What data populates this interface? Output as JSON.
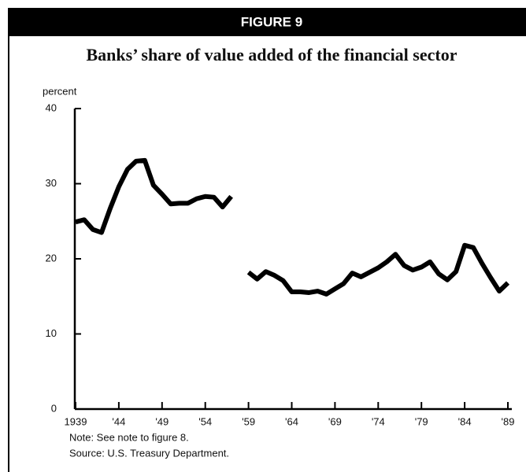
{
  "chart_data": {
    "type": "line",
    "figure_label": "FIGURE 9",
    "title": "Banks’ share of value added of the financial sector",
    "y_label": "percent",
    "x": [
      1939,
      1940,
      1941,
      1942,
      1943,
      1944,
      1945,
      1946,
      1947,
      1948,
      1949,
      1950,
      1951,
      1952,
      1953,
      1954,
      1955,
      1956,
      1957,
      1958,
      1959,
      1960,
      1961,
      1962,
      1963,
      1964,
      1965,
      1966,
      1967,
      1968,
      1969,
      1970,
      1971,
      1972,
      1973,
      1974,
      1975,
      1976,
      1977,
      1978,
      1979,
      1980,
      1981,
      1982,
      1983,
      1984,
      1985,
      1986,
      1987,
      1988,
      1989
    ],
    "series": [
      {
        "name": "Banks' share",
        "color": "#000000",
        "values": [
          24.9,
          25.2,
          23.9,
          23.5,
          26.7,
          29.6,
          31.9,
          33.0,
          33.1,
          29.8,
          28.6,
          27.3,
          27.4,
          27.4,
          28.0,
          28.3,
          28.2,
          26.9,
          28.3,
          null,
          18.2,
          17.3,
          18.3,
          17.8,
          17.1,
          15.6,
          15.6,
          15.5,
          15.7,
          15.3,
          16.0,
          16.7,
          18.1,
          17.6,
          18.2,
          18.8,
          19.6,
          20.6,
          19.1,
          18.5,
          18.9,
          19.6,
          18.0,
          17.2,
          18.3,
          21.8,
          21.5,
          19.4,
          17.5,
          15.7,
          16.8
        ]
      }
    ],
    "xlim": [
      1939,
      1989
    ],
    "xticks": [
      1939,
      {
        "value": 1944,
        "label": "'44"
      },
      {
        "value": 1949,
        "label": "'49"
      },
      {
        "value": 1954,
        "label": "'54"
      },
      {
        "value": 1959,
        "label": "'59"
      },
      {
        "value": 1964,
        "label": "'64"
      },
      {
        "value": 1969,
        "label": "'69"
      },
      {
        "value": 1974,
        "label": "'74"
      },
      {
        "value": 1979,
        "label": "'79"
      },
      {
        "value": 1984,
        "label": "'84"
      },
      {
        "value": 1989,
        "label": "'89"
      }
    ],
    "ylim": [
      0,
      40
    ],
    "yticks": [
      0,
      10,
      20,
      30,
      40
    ],
    "grid": false,
    "notes": [
      "Note: See note to figure 8.",
      "Source: U.S. Treasury Department."
    ]
  }
}
